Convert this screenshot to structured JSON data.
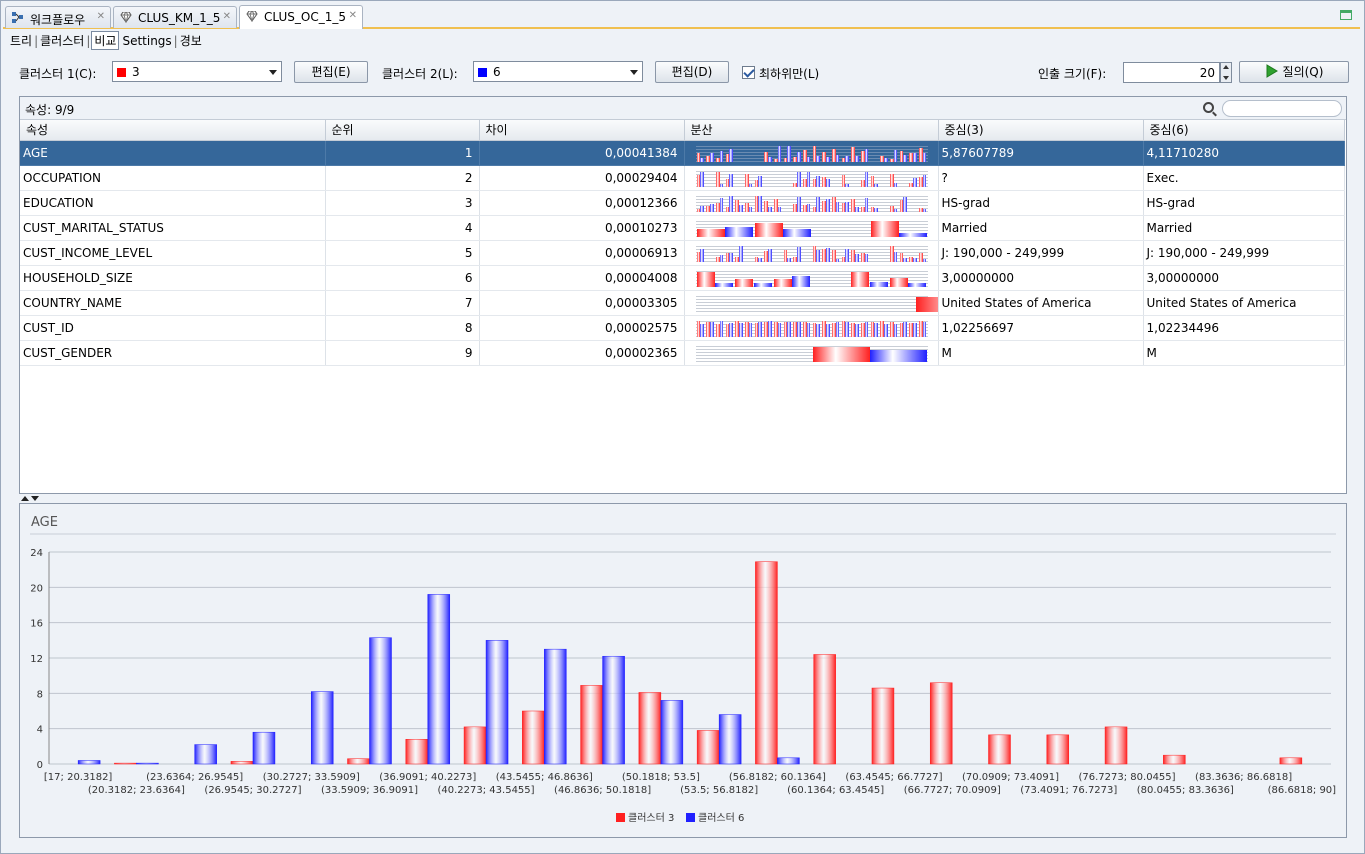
{
  "tabs": [
    {
      "label": "워크플로우",
      "icon": "workflow-icon",
      "active": false
    },
    {
      "label": "CLUS_KM_1_5",
      "icon": "diamond-model-icon",
      "active": false
    },
    {
      "label": "CLUS_OC_1_5",
      "icon": "diamond-model-icon",
      "active": true
    }
  ],
  "subtabs": [
    {
      "label": "트리",
      "active": false
    },
    {
      "label": "클러스터",
      "active": false
    },
    {
      "label": "비교",
      "active": true
    },
    {
      "label": "Settings",
      "active": false
    },
    {
      "label": "경보",
      "active": false
    }
  ],
  "controls": {
    "cluster1_label": "클러스터 1(C):",
    "cluster1_value": "3",
    "cluster1_color": "#ff0000",
    "edit1_label": "편집(E)",
    "cluster2_label": "클러스터 2(L):",
    "cluster2_value": "6",
    "cluster2_color": "#0000ff",
    "edit2_label": "편집(D)",
    "topmost_label": "최하위만(L)",
    "topmost_checked": true,
    "fetch_label": "인출 크기(F):",
    "fetch_value": "20",
    "query_label": "질의(Q)"
  },
  "table": {
    "count_label": "속성: 9/9",
    "columns": [
      "속성",
      "순위",
      "차이",
      "분산",
      "중심(3)",
      "중심(6)"
    ],
    "rows": [
      {
        "attr": "AGE",
        "rank": "1",
        "diff": "0,00041384",
        "c3": "5,87607789",
        "c6": "4,11710280",
        "selected": true
      },
      {
        "attr": "OCCUPATION",
        "rank": "2",
        "diff": "0,00029404",
        "c3": "?",
        "c6": "Exec.",
        "selected": false
      },
      {
        "attr": "EDUCATION",
        "rank": "3",
        "diff": "0,00012366",
        "c3": "HS-grad",
        "c6": "HS-grad",
        "selected": false
      },
      {
        "attr": "CUST_MARITAL_STATUS",
        "rank": "4",
        "diff": "0,00010273",
        "c3": "Married",
        "c6": "Married",
        "selected": false
      },
      {
        "attr": "CUST_INCOME_LEVEL",
        "rank": "5",
        "diff": "0,00006913",
        "c3": "J: 190,000 - 249,999",
        "c6": "J: 190,000 - 249,999",
        "selected": false
      },
      {
        "attr": "HOUSEHOLD_SIZE",
        "rank": "6",
        "diff": "0,00004008",
        "c3": "3,00000000",
        "c6": "3,00000000",
        "selected": false
      },
      {
        "attr": "COUNTRY_NAME",
        "rank": "7",
        "diff": "0,00003305",
        "c3": "United States of America",
        "c6": "United States of America",
        "selected": false
      },
      {
        "attr": "CUST_ID",
        "rank": "8",
        "diff": "0,00002575",
        "c3": "1,02256697",
        "c6": "1,02234496",
        "selected": false
      },
      {
        "attr": "CUST_GENDER",
        "rank": "9",
        "diff": "0,00002365",
        "c3": "M",
        "c6": "M",
        "selected": false
      }
    ]
  },
  "chart_data": {
    "type": "bar",
    "title": "AGE",
    "xlabel": "",
    "ylabel": "",
    "ylim": [
      0,
      24
    ],
    "yticks": [
      0,
      4,
      8,
      12,
      16,
      20,
      24
    ],
    "grid": true,
    "legend_position": "bottom",
    "categories": [
      "[17; 20.3182]",
      "(20.3182; 23.6364]",
      "(23.6364; 26.9545]",
      "(26.9545; 30.2727]",
      "(30.2727; 33.5909]",
      "(33.5909; 36.9091]",
      "(36.9091; 40.2273]",
      "(40.2273; 43.5455]",
      "(43.5455; 46.8636]",
      "(46.8636; 50.1818]",
      "(50.1818; 53.5]",
      "(53.5; 56.8182]",
      "(56.8182; 60.1364]",
      "(60.1364; 63.4545]",
      "(63.4545; 66.7727]",
      "(66.7727; 70.0909]",
      "(70.0909; 73.4091]",
      "(73.4091; 76.7273]",
      "(76.7273; 80.0455]",
      "(80.0455; 83.3636]",
      "(83.3636; 86.6818]",
      "(86.6818; 90]"
    ],
    "series": [
      {
        "name": "클러스터 3",
        "color": "#ff2020",
        "values": [
          0,
          0.1,
          0,
          0.3,
          0,
          0.6,
          2.8,
          4.2,
          6.0,
          8.9,
          8.1,
          3.8,
          22.9,
          12.4,
          8.6,
          9.2,
          3.3,
          3.3,
          4.2,
          1.0,
          0,
          0.7
        ]
      },
      {
        "name": "클러스터 6",
        "color": "#2020ff",
        "values": [
          0.4,
          0.1,
          2.2,
          3.6,
          8.2,
          14.3,
          19.2,
          14.0,
          13.0,
          12.2,
          7.2,
          5.6,
          0.7,
          0,
          0,
          0,
          0,
          0,
          0,
          0,
          0,
          0
        ]
      }
    ]
  }
}
